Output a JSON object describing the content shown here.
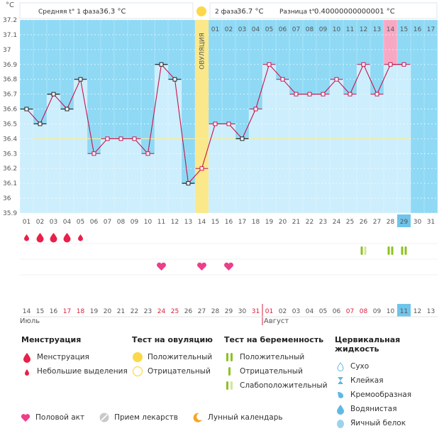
{
  "units": "°C",
  "header": {
    "phase1_label": "Средняя t° 1 фаза",
    "phase1_value": "36.3 °C",
    "phase2_label": "2 фаза",
    "phase2_value": "36.7 °C",
    "diff_label": "Разница t°",
    "diff_value": "0.40000000000001 °C"
  },
  "ovulation_label": "ОВУЛЯЦИЯ",
  "chart_data": {
    "type": "line",
    "title": "",
    "ylim": [
      35.9,
      37.2
    ],
    "yticks": [
      35.9,
      36,
      36.1,
      36.2,
      36.3,
      36.4,
      36.5,
      36.6,
      36.7,
      36.8,
      36.9,
      37,
      37.1,
      37.2
    ],
    "cycle_days": [
      "01",
      "02",
      "03",
      "04",
      "05",
      "06",
      "07",
      "08",
      "09",
      "10",
      "11",
      "12",
      "13",
      "14",
      "15",
      "16",
      "17",
      "18",
      "19",
      "20",
      "21",
      "22",
      "23",
      "24",
      "25",
      "26",
      "27",
      "28",
      "29",
      "30",
      "31"
    ],
    "phase2_days": [
      "01",
      "02",
      "03",
      "04",
      "05",
      "06",
      "07",
      "08",
      "09",
      "10",
      "11",
      "12",
      "13",
      "14",
      "15",
      "16",
      "17"
    ],
    "highlight_cycle_day": "29",
    "highlight_phase2_day": "14",
    "coverline": 36.4,
    "ovulation_day": 14,
    "temperatures": [
      36.6,
      36.5,
      36.7,
      36.6,
      36.8,
      36.3,
      36.4,
      36.4,
      36.4,
      36.3,
      36.9,
      36.8,
      36.1,
      36.2,
      36.5,
      36.5,
      36.4,
      36.6,
      36.9,
      36.8,
      36.7,
      36.7,
      36.7,
      36.8,
      36.7,
      36.9,
      36.7,
      36.9,
      36.9,
      null,
      null
    ],
    "phase1_point_days": [
      1,
      2,
      3,
      4,
      5,
      11,
      12,
      13,
      17
    ],
    "calendar_dates": [
      "14",
      "15",
      "16",
      "17",
      "18",
      "19",
      "20",
      "21",
      "22",
      "23",
      "24",
      "25",
      "26",
      "27",
      "28",
      "29",
      "30",
      "31",
      "01",
      "02",
      "03",
      "04",
      "05",
      "06",
      "07",
      "08",
      "09",
      "10",
      "11",
      "12",
      "13"
    ],
    "weekend_indices": [
      3,
      4,
      10,
      11,
      17,
      18,
      24,
      25
    ],
    "today_index": 28,
    "month_labels": [
      "Июль",
      "Август"
    ],
    "menstruation": [
      {
        "day": 1,
        "type": "light"
      },
      {
        "day": 2,
        "type": "heavy"
      },
      {
        "day": 3,
        "type": "heavy"
      },
      {
        "day": 4,
        "type": "heavy"
      },
      {
        "day": 5,
        "type": "light"
      }
    ],
    "intercourse_days": [
      11,
      14,
      16
    ],
    "pregnancy_tests": [
      {
        "day": 26,
        "type": "weak"
      },
      {
        "day": 28,
        "type": "positive"
      },
      {
        "day": 29,
        "type": "positive"
      }
    ]
  },
  "legend": {
    "menstruation": {
      "title": "Менструация",
      "items": [
        "Менструация",
        "Небольшие выделения"
      ]
    },
    "ovulation_test": {
      "title": "Тест на овуляцию",
      "items": [
        "Положительный",
        "Отрицательный"
      ]
    },
    "pregnancy_test": {
      "title": "Тест на беременность",
      "items": [
        "Положительный",
        "Отрицательный",
        "Слабоположительный"
      ]
    },
    "cervical": {
      "title": "Цервикальная жидкость",
      "items": [
        "Сухо",
        "Клейкая",
        "Кремообразная",
        "Водянистая",
        "Яичный белок"
      ]
    },
    "bottom": [
      "Половой акт",
      "Прием лекарств",
      "Лунный календарь"
    ]
  },
  "colors": {
    "plot_bg": "#8fd9f5",
    "bar": "#cdeefc",
    "line": "#c8124a",
    "ovulation": "#fbe88a",
    "today": "#6fc4ea",
    "highlight": "#f7a9c4"
  }
}
